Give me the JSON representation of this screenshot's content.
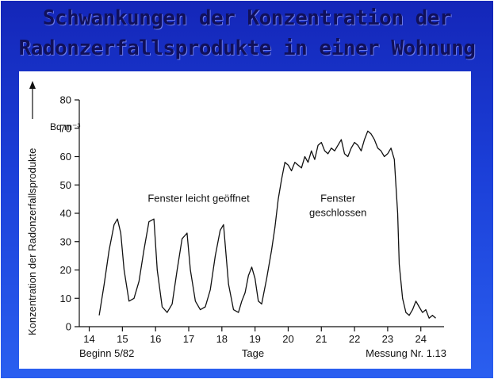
{
  "slide": {
    "title_line1": "Schwankungen der  Konzentration der",
    "title_line2": "Radonzerfallsprodukte in einer Wohnung",
    "colors": {
      "background": "#1b3fd8",
      "title": "#10105a",
      "panel": "#ffffff",
      "line": "#111111"
    }
  },
  "chart_data": {
    "type": "line",
    "title": "",
    "ylabel": "Konzentration der Radonzerfallsprodukte",
    "yunit": "Bq m⁻³",
    "xlabel": "Tage",
    "xlabel_left": "Beginn 5/82",
    "xlabel_right": "Messung Nr. 1.13",
    "xlim": [
      13.7,
      24.7
    ],
    "ylim": [
      0,
      80
    ],
    "xticks": [
      14,
      15,
      16,
      17,
      18,
      19,
      20,
      21,
      22,
      23,
      24
    ],
    "yticks": [
      0,
      10,
      20,
      30,
      40,
      50,
      60,
      70,
      80
    ],
    "annotations": [
      {
        "text": "Fenster leicht geöffnet",
        "x": 17.3,
        "y": 44
      },
      {
        "text": "Fenster",
        "x": 21.5,
        "y": 44
      },
      {
        "text": "geschlossen",
        "x": 21.5,
        "y": 39
      }
    ],
    "series": [
      {
        "name": "Radonzerfallsprodukte",
        "x": [
          14.3,
          14.45,
          14.6,
          14.75,
          14.85,
          14.95,
          15.05,
          15.2,
          15.35,
          15.5,
          15.65,
          15.8,
          15.95,
          16.05,
          16.2,
          16.35,
          16.5,
          16.65,
          16.8,
          16.95,
          17.05,
          17.2,
          17.35,
          17.5,
          17.65,
          17.8,
          17.95,
          18.05,
          18.2,
          18.35,
          18.5,
          18.6,
          18.7,
          18.8,
          18.9,
          19.0,
          19.1,
          19.2,
          19.35,
          19.5,
          19.6,
          19.7,
          19.8,
          19.9,
          20.0,
          20.1,
          20.2,
          20.3,
          20.4,
          20.5,
          20.6,
          20.7,
          20.8,
          20.9,
          21.0,
          21.1,
          21.2,
          21.3,
          21.4,
          21.5,
          21.6,
          21.7,
          21.8,
          21.9,
          22.0,
          22.1,
          22.2,
          22.3,
          22.4,
          22.5,
          22.6,
          22.7,
          22.8,
          22.9,
          23.0,
          23.1,
          23.2,
          23.3,
          23.35,
          23.45,
          23.55,
          23.65,
          23.75,
          23.85,
          23.95,
          24.05,
          24.15,
          24.25,
          24.35,
          24.45
        ],
        "values": [
          4,
          15,
          27,
          36,
          38,
          33,
          20,
          9,
          10,
          16,
          27,
          37,
          38,
          20,
          7,
          5,
          8,
          20,
          31,
          33,
          20,
          9,
          6,
          7,
          13,
          25,
          34,
          36,
          15,
          6,
          5,
          9,
          12,
          18,
          21,
          17,
          9,
          8,
          17,
          27,
          35,
          45,
          52,
          58,
          57,
          55,
          58,
          57,
          56,
          60,
          58,
          62,
          59,
          64,
          65,
          62,
          61,
          63,
          62,
          64,
          66,
          61,
          60,
          63,
          65,
          64,
          62,
          66,
          69,
          68,
          66,
          63,
          62,
          60,
          61,
          63,
          59,
          40,
          22,
          10,
          5,
          4,
          6,
          9,
          7,
          5,
          6,
          3,
          4,
          3
        ]
      }
    ]
  }
}
